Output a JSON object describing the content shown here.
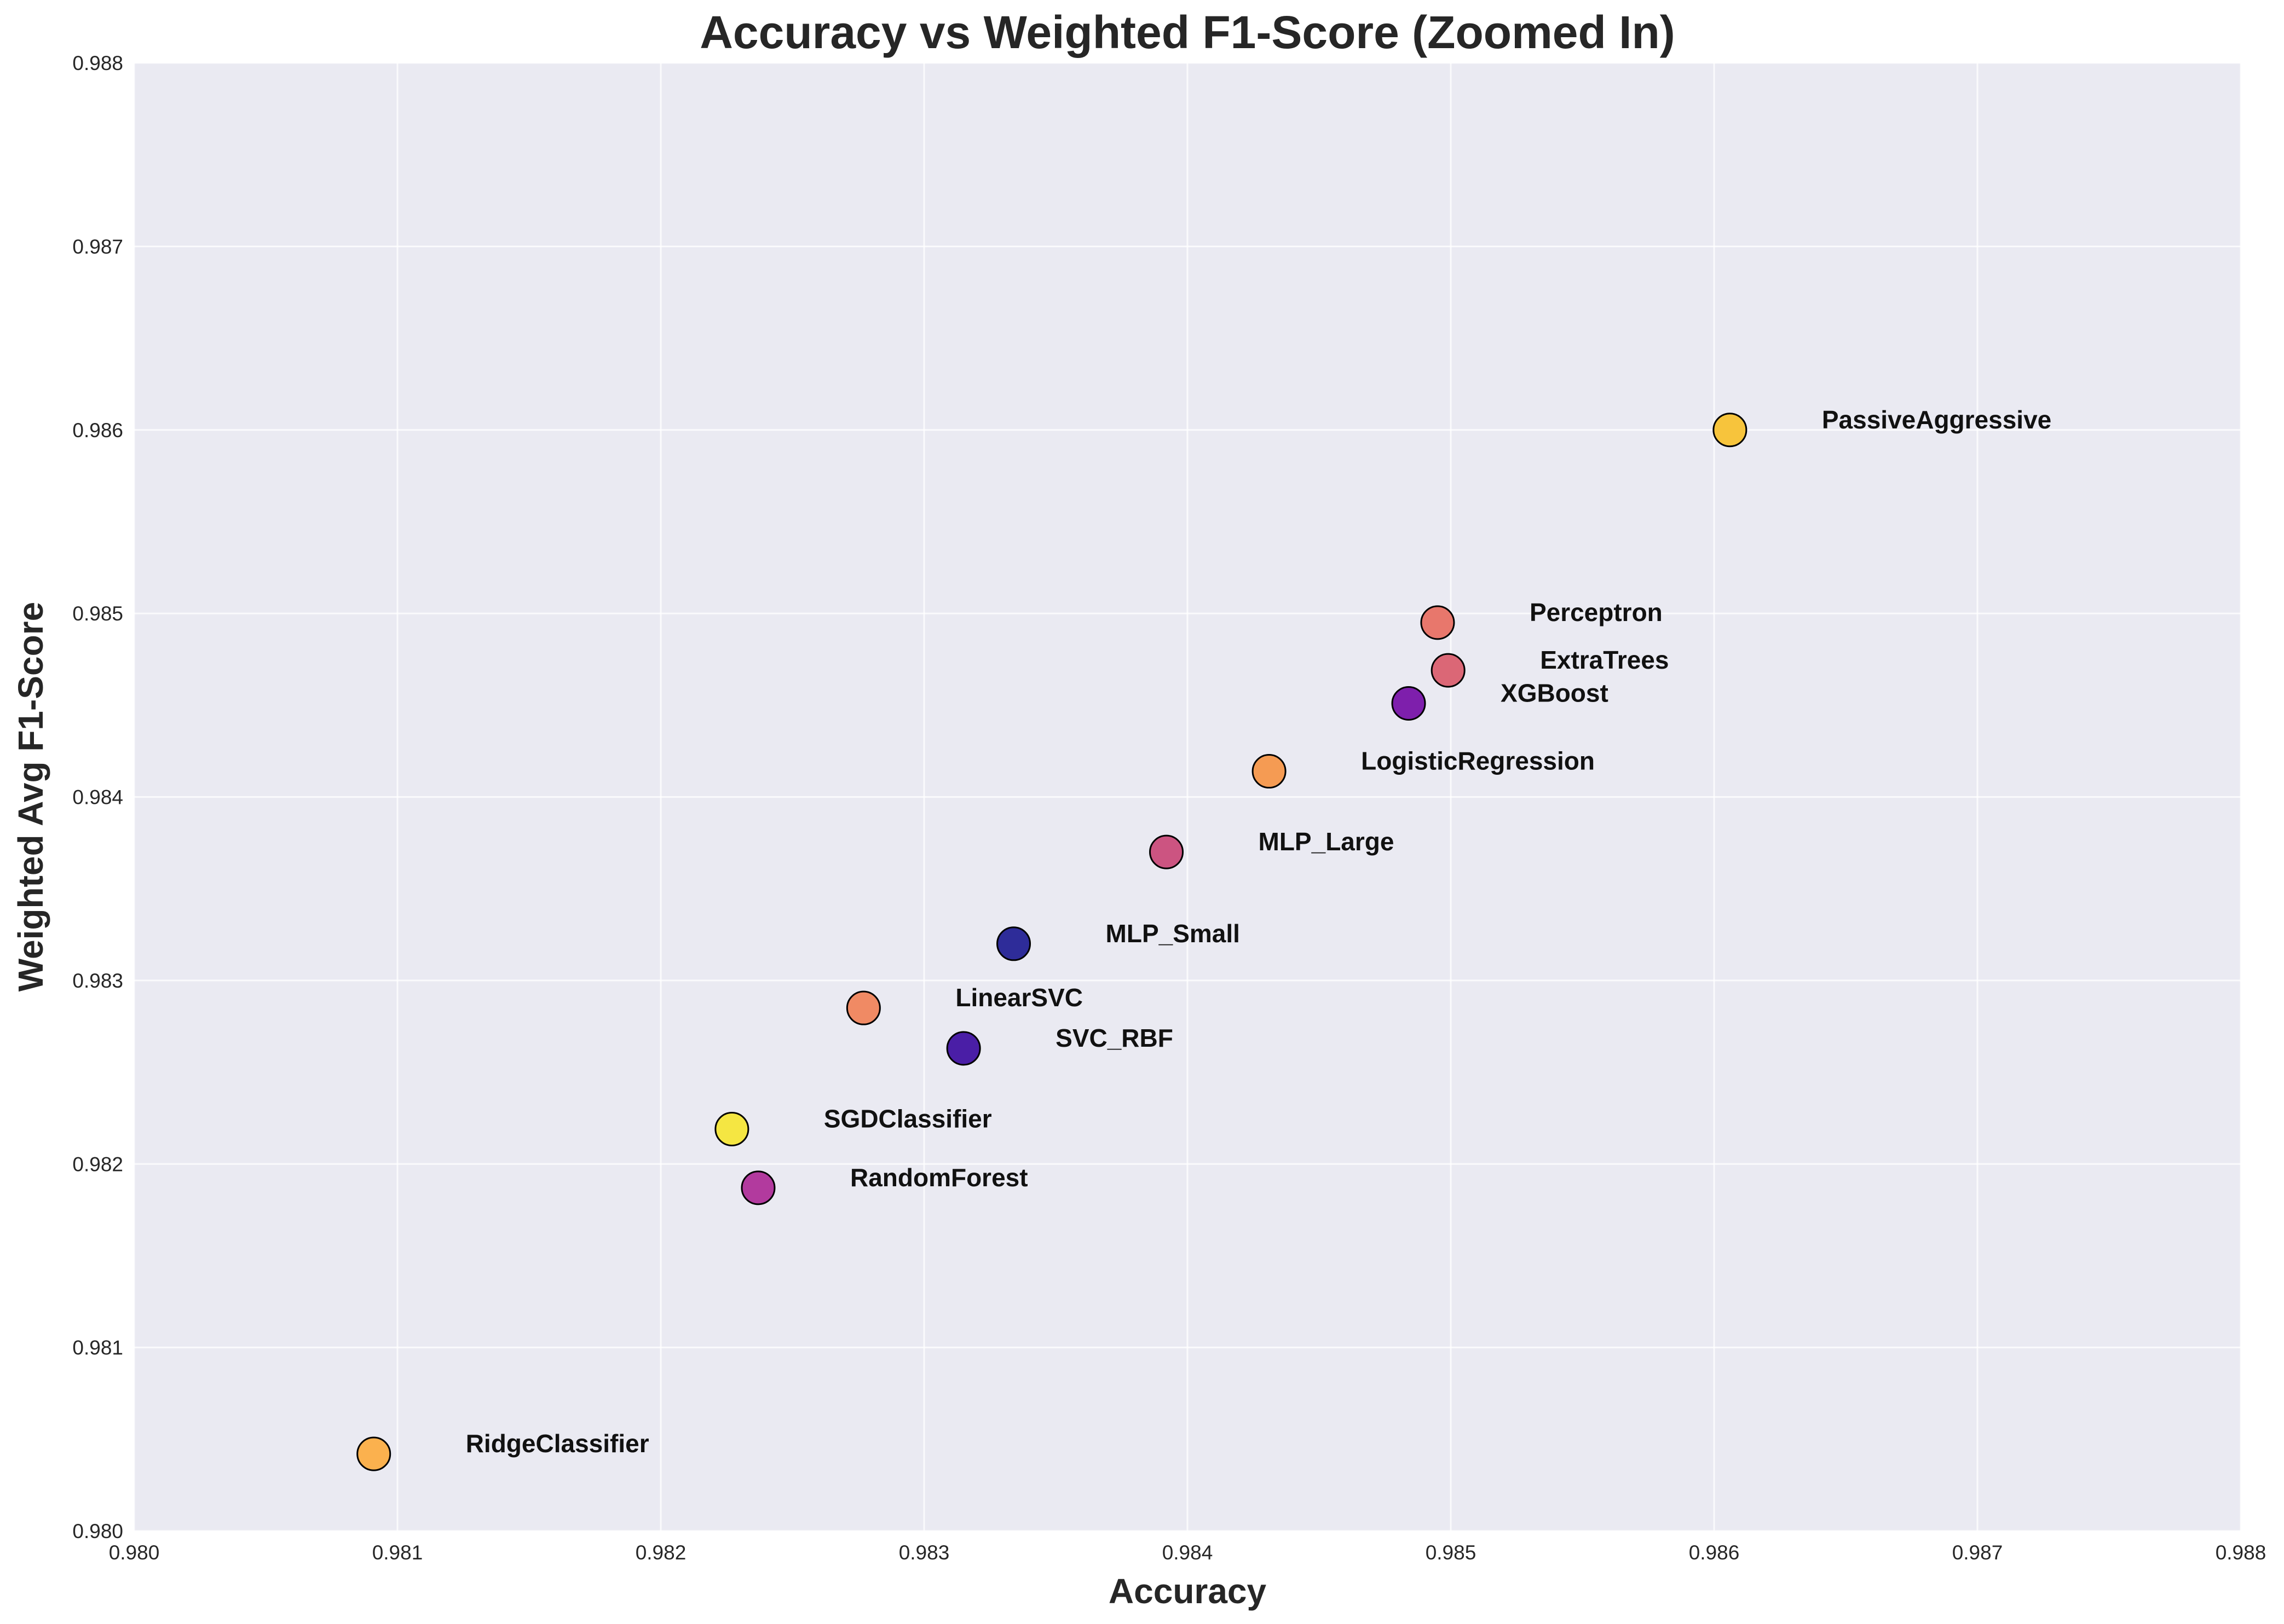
{
  "chart_data": {
    "type": "scatter",
    "title": "Accuracy vs Weighted F1-Score (Zoomed In)",
    "xlabel": "Accuracy",
    "ylabel": "Weighted Avg F1-Score",
    "xlim": [
      0.98,
      0.988
    ],
    "ylim": [
      0.98,
      0.988
    ],
    "xticks": [
      "0.980",
      "0.981",
      "0.982",
      "0.983",
      "0.984",
      "0.985",
      "0.986",
      "0.987",
      "0.988"
    ],
    "yticks": [
      "0.980",
      "0.981",
      "0.982",
      "0.983",
      "0.984",
      "0.985",
      "0.986",
      "0.987",
      "0.988"
    ],
    "grid": true,
    "background": "#eaeaf2",
    "points": [
      {
        "label": "PassiveAggressive",
        "x": 0.98606,
        "y": 0.986,
        "color": "#f7c43c"
      },
      {
        "label": "Perceptron",
        "x": 0.98495,
        "y": 0.98495,
        "color": "#e8776c"
      },
      {
        "label": "ExtraTrees",
        "x": 0.98499,
        "y": 0.98469,
        "color": "#db6776"
      },
      {
        "label": "XGBoost",
        "x": 0.98484,
        "y": 0.98451,
        "color": "#7e1fac"
      },
      {
        "label": "LogisticRegression",
        "x": 0.98431,
        "y": 0.98414,
        "color": "#f59b53"
      },
      {
        "label": "MLP_Large",
        "x": 0.98392,
        "y": 0.9837,
        "color": "#cc5481"
      },
      {
        "label": "MLP_Small",
        "x": 0.98334,
        "y": 0.9832,
        "color": "#2e2c99"
      },
      {
        "label": "LinearSVC",
        "x": 0.98277,
        "y": 0.98285,
        "color": "#f08a64"
      },
      {
        "label": "SVC_RBF",
        "x": 0.98315,
        "y": 0.98263,
        "color": "#4a1ea6"
      },
      {
        "label": "SGDClassifier",
        "x": 0.98227,
        "y": 0.98219,
        "color": "#f5e642"
      },
      {
        "label": "RandomForest",
        "x": 0.98237,
        "y": 0.98187,
        "color": "#b23a9e"
      },
      {
        "label": "RidgeClassifier",
        "x": 0.98091,
        "y": 0.98042,
        "color": "#fbb14e"
      }
    ]
  }
}
